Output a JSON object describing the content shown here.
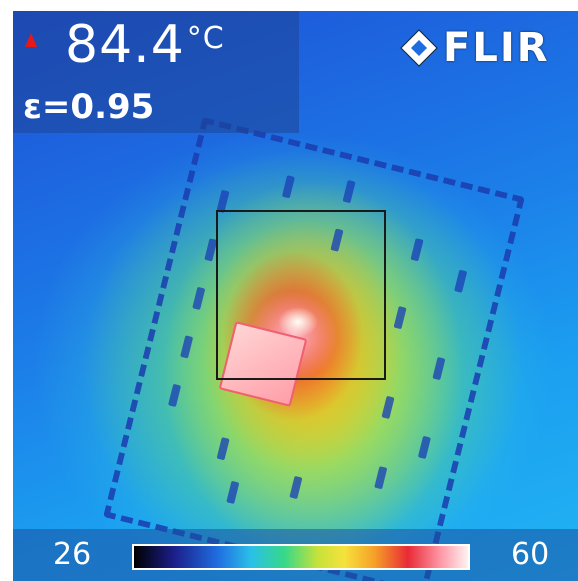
{
  "readout": {
    "temperature": "84.4",
    "unit": "°C",
    "emissivity": "ε=0.95",
    "alarm_icon": "red-up-triangle-icon"
  },
  "logo": {
    "text": "FLIR",
    "icon": "flir-diamond-icon"
  },
  "scale": {
    "min": "26",
    "max": "60",
    "palette": "iron"
  },
  "colors": {
    "alarm": "#e81818",
    "text": "#ffffff",
    "roi_box": "#1a1a1a"
  }
}
